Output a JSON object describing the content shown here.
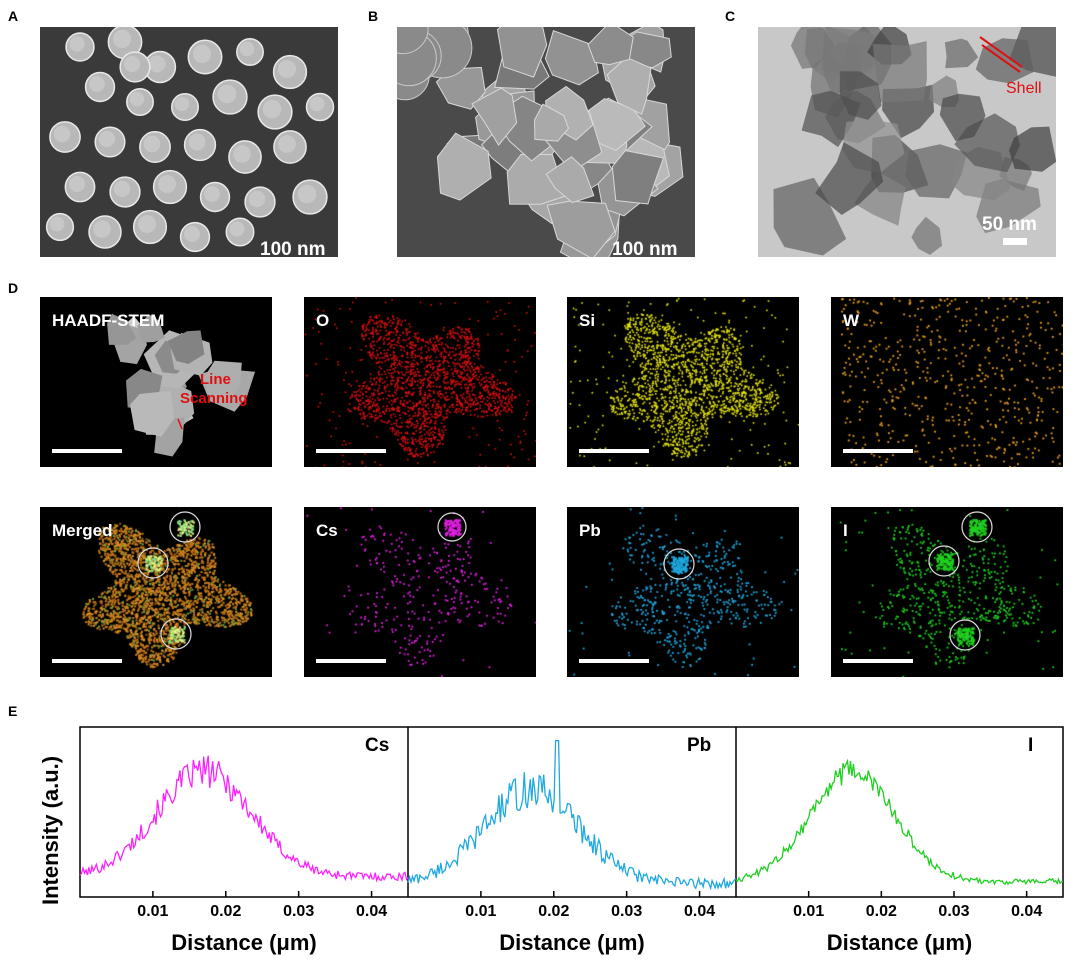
{
  "panel_labels": {
    "a": "A",
    "b": "B",
    "c": "C",
    "d": "D",
    "e": "E"
  },
  "sem_a": {
    "scale": "100 nm"
  },
  "sem_b": {
    "scale": "100 nm"
  },
  "tem_c": {
    "scale": "50 nm",
    "annotation": "Shell"
  },
  "eds_maps": {
    "haadf": {
      "title": "HAADF-STEM",
      "line_scan_label_1": "Line",
      "line_scan_label_2": "Scanning"
    },
    "o": {
      "title": "O",
      "color": "#e01010"
    },
    "si": {
      "title": "Si",
      "color": "#e8e810"
    },
    "w": {
      "title": "W",
      "color": "#e8a020"
    },
    "merged": {
      "title": "Merged"
    },
    "cs": {
      "title": "Cs",
      "color": "#e020e0"
    },
    "pb": {
      "title": "Pb",
      "color": "#20a8e0"
    },
    "i": {
      "title": "I",
      "color": "#20d020"
    }
  },
  "chart_data": [
    {
      "type": "line",
      "title": "",
      "series": [
        {
          "name": "Cs",
          "color": "#ff20ff"
        }
      ],
      "xlabel": "Distance (μm)",
      "ylabel": "Intensity (a.u.)",
      "xlim": [
        0.0,
        0.045
      ],
      "x_ticks": [
        "0.01",
        "0.02",
        "0.03",
        "0.04"
      ],
      "profile": {
        "baseline": 0.12,
        "peak_center": 0.017,
        "peak_width": 0.0065,
        "peak_height": 0.62,
        "noise": 0.05
      }
    },
    {
      "type": "line",
      "title": "",
      "series": [
        {
          "name": "Pb",
          "color": "#20a8e0"
        }
      ],
      "xlabel": "Distance (μm)",
      "ylabel": "Intensity (a.u.)",
      "xlim": [
        0.0,
        0.045
      ],
      "x_ticks": [
        "0.01",
        "0.02",
        "0.03",
        "0.04"
      ],
      "profile": {
        "baseline": 0.08,
        "peak_center": 0.017,
        "peak_width": 0.0065,
        "peak_height": 0.55,
        "noise": 0.06
      }
    },
    {
      "type": "line",
      "title": "",
      "series": [
        {
          "name": "I",
          "color": "#20d020"
        }
      ],
      "xlabel": "Distance (μm)",
      "ylabel": "Intensity (a.u.)",
      "xlim": [
        0.0,
        0.045
      ],
      "x_ticks": [
        "0.01",
        "0.02",
        "0.03",
        "0.04"
      ],
      "profile": {
        "baseline": 0.09,
        "peak_center": 0.016,
        "peak_width": 0.0058,
        "peak_height": 0.65,
        "noise": 0.035
      }
    }
  ],
  "y_axis_title": "Intensity (a.u.)"
}
